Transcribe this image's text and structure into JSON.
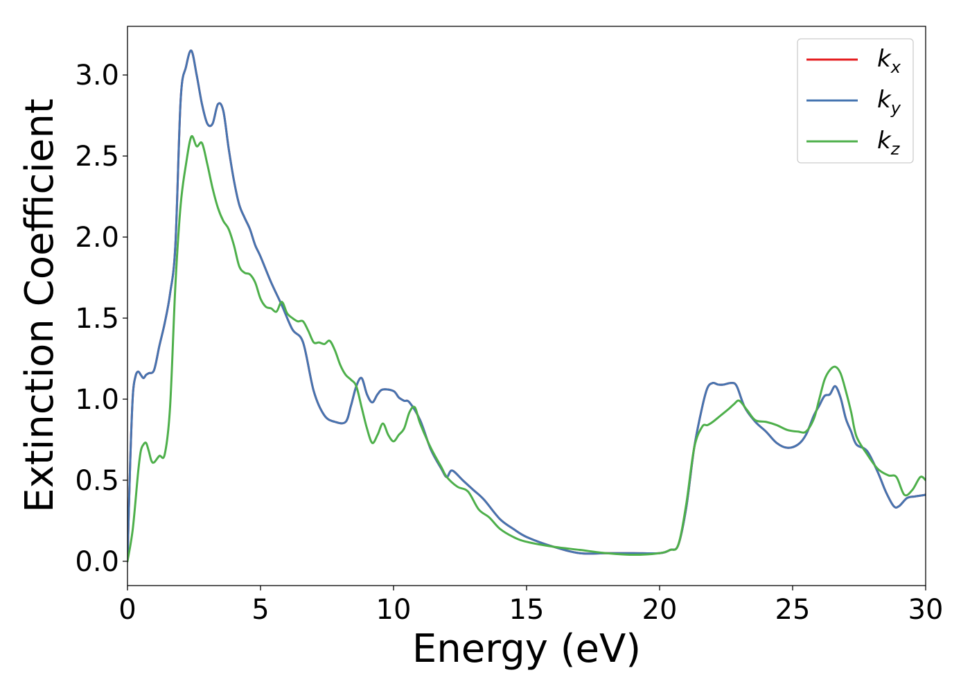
{
  "chart_data": {
    "type": "line",
    "xlabel": "Energy (eV)",
    "ylabel": "Extinction Coefficient",
    "xlim": [
      0,
      30
    ],
    "ylim": [
      -0.15,
      3.3
    ],
    "xticks": [
      0,
      5,
      10,
      15,
      20,
      25,
      30
    ],
    "xtick_labels": [
      "0",
      "5",
      "10",
      "15",
      "20",
      "25",
      "30"
    ],
    "yticks": [
      0.0,
      0.5,
      1.0,
      1.5,
      2.0,
      2.5,
      3.0
    ],
    "ytick_labels": [
      "0.0",
      "0.5",
      "1.0",
      "1.5",
      "2.0",
      "2.5",
      "3.0"
    ],
    "grid": false,
    "legend_position": "top-right",
    "series": [
      {
        "name": "k",
        "subscript": "x",
        "color": "#e41a1c",
        "x": [
          0,
          0.1,
          0.2,
          0.3,
          0.4,
          0.5,
          0.6,
          0.7,
          0.8,
          1.0,
          1.2,
          1.4,
          1.6,
          1.8,
          2.0,
          2.2,
          2.4,
          2.6,
          2.8,
          3.0,
          3.2,
          3.4,
          3.6,
          3.8,
          4.0,
          4.2,
          4.4,
          4.6,
          4.8,
          5.0,
          5.4,
          5.8,
          6.2,
          6.6,
          7.0,
          7.4,
          7.8,
          8.2,
          8.4,
          8.6,
          8.8,
          9.0,
          9.2,
          9.4,
          9.6,
          10.0,
          10.2,
          10.4,
          10.6,
          11.0,
          11.4,
          11.8,
          12.0,
          12.2,
          12.6,
          13.0,
          13.4,
          14.0,
          14.5,
          15.0,
          16.0,
          17.0,
          18.0,
          19.0,
          20.0,
          20.4,
          20.7,
          21.0,
          21.3,
          21.6,
          21.8,
          22.0,
          22.2,
          22.4,
          22.7,
          22.9,
          23.2,
          23.6,
          24.0,
          24.4,
          24.8,
          25.2,
          25.5,
          25.8,
          26.0,
          26.2,
          26.4,
          26.6,
          26.8,
          27.0,
          27.2,
          27.4,
          27.8,
          28.2,
          28.5,
          28.8,
          29.0,
          29.3,
          29.6,
          30.0
        ],
        "y": [
          0.0,
          0.6,
          1.02,
          1.14,
          1.17,
          1.15,
          1.13,
          1.15,
          1.16,
          1.18,
          1.33,
          1.47,
          1.65,
          1.95,
          2.85,
          3.05,
          3.15,
          3.0,
          2.82,
          2.7,
          2.7,
          2.82,
          2.78,
          2.55,
          2.35,
          2.2,
          2.12,
          2.05,
          1.95,
          1.88,
          1.72,
          1.58,
          1.43,
          1.35,
          1.05,
          0.9,
          0.86,
          0.86,
          0.96,
          1.08,
          1.13,
          1.03,
          0.98,
          1.03,
          1.06,
          1.05,
          1.01,
          0.99,
          0.98,
          0.87,
          0.69,
          0.57,
          0.52,
          0.56,
          0.5,
          0.44,
          0.38,
          0.26,
          0.2,
          0.15,
          0.09,
          0.05,
          0.05,
          0.05,
          0.05,
          0.07,
          0.1,
          0.33,
          0.7,
          0.95,
          1.07,
          1.1,
          1.09,
          1.09,
          1.1,
          1.08,
          0.95,
          0.86,
          0.8,
          0.73,
          0.7,
          0.72,
          0.78,
          0.9,
          0.96,
          1.02,
          1.03,
          1.08,
          1.01,
          0.88,
          0.8,
          0.72,
          0.68,
          0.55,
          0.43,
          0.34,
          0.34,
          0.39,
          0.4,
          0.41
        ]
      },
      {
        "name": "k",
        "subscript": "y",
        "color": "#4574b0",
        "x": [
          0,
          0.1,
          0.2,
          0.3,
          0.4,
          0.5,
          0.6,
          0.7,
          0.8,
          1.0,
          1.2,
          1.4,
          1.6,
          1.8,
          2.0,
          2.2,
          2.4,
          2.6,
          2.8,
          3.0,
          3.2,
          3.4,
          3.6,
          3.8,
          4.0,
          4.2,
          4.4,
          4.6,
          4.8,
          5.0,
          5.4,
          5.8,
          6.2,
          6.6,
          7.0,
          7.4,
          7.8,
          8.2,
          8.4,
          8.6,
          8.8,
          9.0,
          9.2,
          9.4,
          9.6,
          10.0,
          10.2,
          10.4,
          10.6,
          11.0,
          11.4,
          11.8,
          12.0,
          12.2,
          12.6,
          13.0,
          13.4,
          14.0,
          14.5,
          15.0,
          16.0,
          17.0,
          18.0,
          19.0,
          20.0,
          20.4,
          20.7,
          21.0,
          21.3,
          21.6,
          21.8,
          22.0,
          22.2,
          22.4,
          22.7,
          22.9,
          23.2,
          23.6,
          24.0,
          24.4,
          24.8,
          25.2,
          25.5,
          25.8,
          26.0,
          26.2,
          26.4,
          26.6,
          26.8,
          27.0,
          27.2,
          27.4,
          27.8,
          28.2,
          28.5,
          28.8,
          29.0,
          29.3,
          29.6,
          30.0
        ],
        "y": [
          0.0,
          0.6,
          1.02,
          1.14,
          1.17,
          1.15,
          1.13,
          1.15,
          1.16,
          1.18,
          1.33,
          1.47,
          1.65,
          1.95,
          2.85,
          3.05,
          3.15,
          3.0,
          2.82,
          2.7,
          2.7,
          2.82,
          2.78,
          2.55,
          2.35,
          2.2,
          2.12,
          2.05,
          1.95,
          1.88,
          1.72,
          1.58,
          1.43,
          1.35,
          1.05,
          0.9,
          0.86,
          0.86,
          0.96,
          1.08,
          1.13,
          1.03,
          0.98,
          1.03,
          1.06,
          1.05,
          1.01,
          0.99,
          0.98,
          0.87,
          0.69,
          0.57,
          0.52,
          0.56,
          0.5,
          0.44,
          0.38,
          0.26,
          0.2,
          0.15,
          0.09,
          0.05,
          0.05,
          0.05,
          0.05,
          0.07,
          0.1,
          0.33,
          0.7,
          0.95,
          1.07,
          1.1,
          1.09,
          1.09,
          1.1,
          1.08,
          0.95,
          0.86,
          0.8,
          0.73,
          0.7,
          0.72,
          0.78,
          0.9,
          0.96,
          1.02,
          1.03,
          1.08,
          1.01,
          0.88,
          0.8,
          0.72,
          0.68,
          0.55,
          0.43,
          0.34,
          0.34,
          0.39,
          0.4,
          0.41
        ]
      },
      {
        "name": "k",
        "subscript": "z",
        "color": "#4daf4a",
        "x": [
          0,
          0.2,
          0.4,
          0.5,
          0.6,
          0.7,
          0.8,
          0.9,
          1.0,
          1.2,
          1.4,
          1.6,
          1.8,
          2.0,
          2.2,
          2.4,
          2.6,
          2.8,
          3.0,
          3.2,
          3.4,
          3.6,
          3.8,
          4.0,
          4.2,
          4.4,
          4.6,
          4.8,
          5.0,
          5.2,
          5.4,
          5.6,
          5.8,
          6.0,
          6.2,
          6.4,
          6.6,
          6.8,
          7.0,
          7.2,
          7.4,
          7.6,
          7.8,
          8.0,
          8.2,
          8.4,
          8.6,
          8.8,
          9.0,
          9.2,
          9.4,
          9.6,
          9.8,
          10.0,
          10.2,
          10.4,
          10.6,
          10.8,
          11.0,
          11.4,
          11.8,
          12.0,
          12.4,
          12.8,
          13.2,
          13.6,
          14.0,
          14.5,
          15.0,
          16.0,
          17.0,
          18.0,
          19.0,
          20.0,
          20.4,
          20.7,
          21.0,
          21.3,
          21.6,
          21.8,
          22.0,
          22.3,
          22.6,
          22.8,
          23.0,
          23.3,
          23.6,
          24.0,
          24.4,
          24.8,
          25.2,
          25.5,
          25.8,
          26.0,
          26.2,
          26.4,
          26.6,
          26.8,
          27.0,
          27.2,
          27.4,
          27.8,
          28.2,
          28.6,
          28.9,
          29.2,
          29.5,
          29.8,
          30.0
        ],
        "y": [
          0.0,
          0.2,
          0.55,
          0.68,
          0.72,
          0.73,
          0.68,
          0.62,
          0.61,
          0.65,
          0.66,
          0.95,
          1.7,
          2.2,
          2.45,
          2.62,
          2.56,
          2.58,
          2.45,
          2.3,
          2.18,
          2.1,
          2.05,
          1.95,
          1.82,
          1.78,
          1.77,
          1.72,
          1.62,
          1.57,
          1.56,
          1.54,
          1.6,
          1.53,
          1.5,
          1.48,
          1.48,
          1.42,
          1.35,
          1.35,
          1.34,
          1.36,
          1.3,
          1.21,
          1.15,
          1.12,
          1.08,
          0.95,
          0.82,
          0.73,
          0.78,
          0.85,
          0.78,
          0.74,
          0.78,
          0.82,
          0.92,
          0.95,
          0.85,
          0.7,
          0.58,
          0.52,
          0.46,
          0.43,
          0.32,
          0.27,
          0.2,
          0.15,
          0.12,
          0.09,
          0.07,
          0.05,
          0.04,
          0.05,
          0.07,
          0.1,
          0.35,
          0.7,
          0.83,
          0.84,
          0.86,
          0.9,
          0.94,
          0.97,
          0.99,
          0.93,
          0.87,
          0.86,
          0.84,
          0.81,
          0.8,
          0.8,
          0.88,
          1.0,
          1.12,
          1.18,
          1.2,
          1.16,
          1.05,
          0.92,
          0.77,
          0.66,
          0.57,
          0.53,
          0.52,
          0.41,
          0.44,
          0.52,
          0.5
        ]
      }
    ]
  }
}
